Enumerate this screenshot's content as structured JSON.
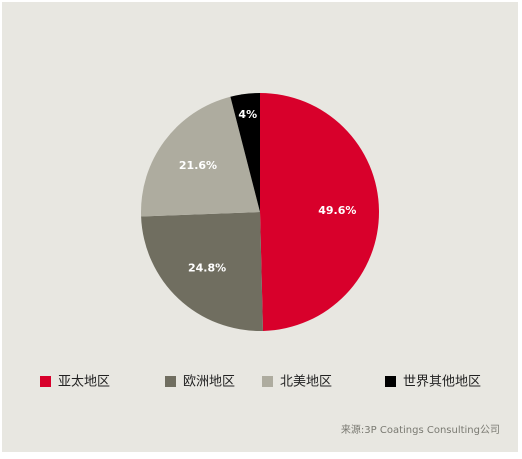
{
  "chart_data": {
    "type": "pie",
    "categories": [
      "亚太地区",
      "欧洲地区",
      "北美地区",
      "世界其他地区"
    ],
    "values": [
      49.6,
      24.8,
      21.6,
      4
    ],
    "value_labels": [
      "49.6%",
      "24.8%",
      "21.6%",
      "4%"
    ],
    "colors": [
      "#d8002b",
      "#706e60",
      "#aeac9f",
      "#000000"
    ],
    "source": "来源:3P Coatings Consulting公司"
  }
}
